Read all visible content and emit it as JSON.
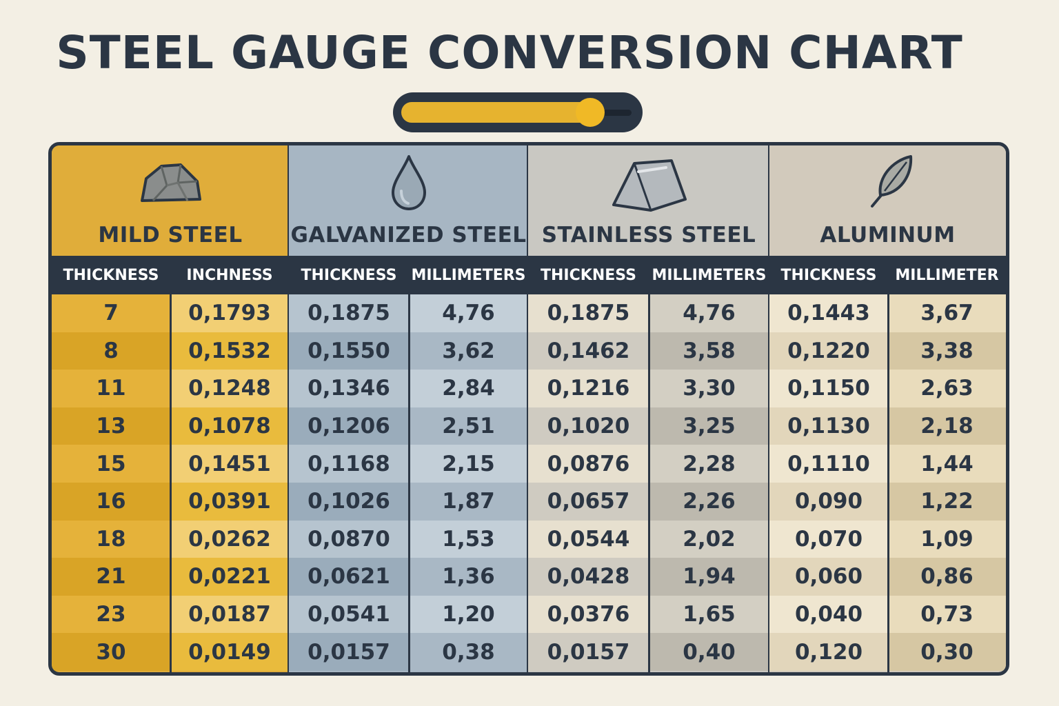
{
  "title": "STEEL GAUGE CONVERSION CHART",
  "slider": {
    "level": 0.82
  },
  "sections": [
    {
      "name": "MILD STEEL",
      "icon": "rock-icon",
      "headers": [
        "THICKNESS",
        "INCHNESS"
      ],
      "header_color": "#e0ad3a",
      "col_colors": [
        [
          "#e5b23a",
          "#d9a426"
        ],
        [
          "#f2cf74",
          "#e9bb3d"
        ]
      ],
      "rows": [
        [
          "7",
          "0,1793"
        ],
        [
          "8",
          "0,1532"
        ],
        [
          "11",
          "0,1248"
        ],
        [
          "13",
          "0,1078"
        ],
        [
          "15",
          "0,1451"
        ],
        [
          "16",
          "0,0391"
        ],
        [
          "18",
          "0,0262"
        ],
        [
          "21",
          "0,0221"
        ],
        [
          "23",
          "0,0187"
        ],
        [
          "30",
          "0,0149"
        ]
      ]
    },
    {
      "name": "GALVANIZED STEEL",
      "icon": "water-drop-icon",
      "headers": [
        "THICKNESS",
        "MILLIMETERS"
      ],
      "header_color": "#a7b6c3",
      "col_colors": [
        [
          "#b6c4cf",
          "#9aacbb"
        ],
        [
          "#c3cfd8",
          "#a9b8c5"
        ]
      ],
      "rows": [
        [
          "0,1875",
          "4,76"
        ],
        [
          "0,1550",
          "3,62"
        ],
        [
          "0,1346",
          "2,84"
        ],
        [
          "0,1206",
          "2,51"
        ],
        [
          "0,1168",
          "2,15"
        ],
        [
          "0,1026",
          "1,87"
        ],
        [
          "0,0870",
          "1,53"
        ],
        [
          "0,0621",
          "1,36"
        ],
        [
          "0,0541",
          "1,20"
        ],
        [
          "0,0157",
          "0,38"
        ]
      ]
    },
    {
      "name": "STAINLESS STEEL",
      "icon": "metal-ingot-icon",
      "headers": [
        "THICKNESS",
        "MILLIMETERS"
      ],
      "header_color": "#c9c8c2",
      "col_colors": [
        [
          "#e7e0cf",
          "#cfcbc1"
        ],
        [
          "#d3cfc3",
          "#bdb9ae"
        ]
      ],
      "rows": [
        [
          "0,1875",
          "4,76"
        ],
        [
          "0,1462",
          "3,58"
        ],
        [
          "0,1216",
          "3,30"
        ],
        [
          "0,1020",
          "3,25"
        ],
        [
          "0,0876",
          "2,28"
        ],
        [
          "0,0657",
          "2,26"
        ],
        [
          "0,0544",
          "2,02"
        ],
        [
          "0,0428",
          "1,94"
        ],
        [
          "0,0376",
          "1,65"
        ],
        [
          "0,0157",
          "0,40"
        ]
      ]
    },
    {
      "name": "ALUMINUM",
      "icon": "feather-icon",
      "headers": [
        "THICKNESS",
        "MILLIMETER"
      ],
      "header_color": "#d2cabc",
      "col_colors": [
        [
          "#efe6d0",
          "#e2d6bb"
        ],
        [
          "#e9dcbc",
          "#d6c7a3"
        ]
      ],
      "rows": [
        [
          "0,1443",
          "3,67"
        ],
        [
          "0,1220",
          "3,38"
        ],
        [
          "0,1150",
          "2,63"
        ],
        [
          "0,1130",
          "2,18"
        ],
        [
          "0,1110",
          "1,44"
        ],
        [
          "0,090",
          "1,22"
        ],
        [
          "0,070",
          "1,09"
        ],
        [
          "0,060",
          "0,86"
        ],
        [
          "0,040",
          "0,73"
        ],
        [
          "0,120",
          "0,30"
        ]
      ]
    }
  ]
}
